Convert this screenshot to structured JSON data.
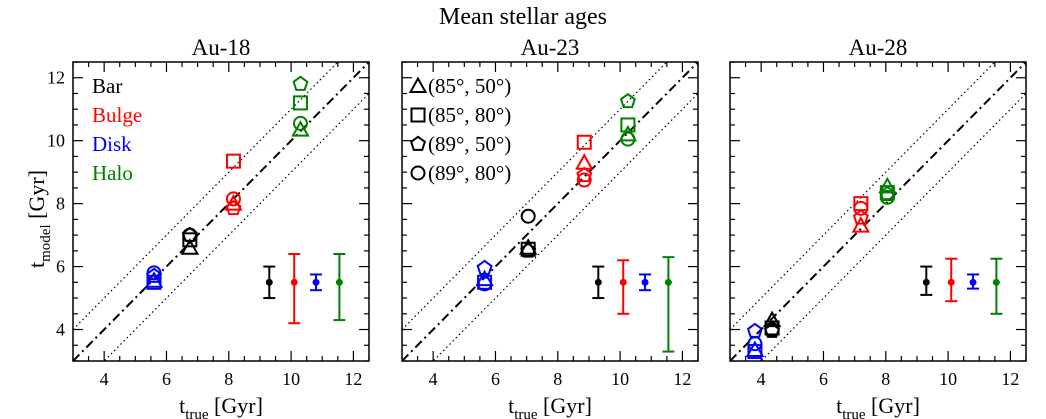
{
  "suptitle": "Mean stellar ages",
  "colors": {
    "Bar": "#000000",
    "Bulge": "#ff0000",
    "Disk": "#0000ff",
    "Halo": "#008000"
  },
  "legend_components": [
    "Bar",
    "Bulge",
    "Disk",
    "Halo"
  ],
  "legend_views": [
    {
      "label": "(85°, 50°)",
      "marker": "triangle"
    },
    {
      "label": "(85°, 80°)",
      "marker": "square"
    },
    {
      "label": "(89°, 50°)",
      "marker": "pentagon"
    },
    {
      "label": "(89°, 80°)",
      "marker": "circle"
    }
  ],
  "chart_data": [
    {
      "type": "scatter",
      "title": "Au-18",
      "xlabel_main": "t",
      "xlabel_sub": "true",
      "xlabel_unit": " [Gyr]",
      "ylabel_main": "t",
      "ylabel_sub": "model",
      "ylabel_unit": " [Gyr]",
      "xlim": [
        3,
        12.5
      ],
      "ylim": [
        3,
        12.5
      ],
      "xticks": [
        4,
        6,
        8,
        10,
        12
      ],
      "yticks": [
        4,
        6,
        8,
        10,
        12
      ],
      "reference_lines": {
        "one_to_one": true,
        "offset_gyr": 1
      },
      "points": {
        "Bar": {
          "x": 6.75,
          "y": {
            "triangle": 6.6,
            "square": 6.85,
            "pentagon": 7.0,
            "circle": 7.0
          }
        },
        "Bulge": {
          "x": 8.15,
          "y": {
            "triangle": 8.0,
            "square": 9.35,
            "pentagon": 7.85,
            "circle": 8.15
          }
        },
        "Disk": {
          "x": 5.6,
          "y": {
            "triangle": 5.55,
            "square": 5.5,
            "pentagon": 5.7,
            "circle": 5.8
          }
        },
        "Halo": {
          "x": 10.3,
          "y": {
            "triangle": 10.35,
            "square": 11.2,
            "pentagon": 11.8,
            "circle": 10.55
          }
        }
      },
      "error_bars": [
        {
          "component": "Bar",
          "x": 9.3,
          "y": 5.5,
          "lo": 5.0,
          "hi": 6.0
        },
        {
          "component": "Bulge",
          "x": 10.1,
          "y": 5.5,
          "lo": 4.2,
          "hi": 6.4
        },
        {
          "component": "Disk",
          "x": 10.8,
          "y": 5.5,
          "lo": 5.25,
          "hi": 5.75
        },
        {
          "component": "Halo",
          "x": 11.55,
          "y": 5.5,
          "lo": 4.3,
          "hi": 6.4
        }
      ]
    },
    {
      "type": "scatter",
      "title": "Au-23",
      "xlabel_main": "t",
      "xlabel_sub": "true",
      "xlabel_unit": " [Gyr]",
      "xlim": [
        3,
        12.5
      ],
      "ylim": [
        3,
        12.5
      ],
      "xticks": [
        4,
        6,
        8,
        10,
        12
      ],
      "yticks": [
        4,
        6,
        8,
        10,
        12
      ],
      "reference_lines": {
        "one_to_one": true,
        "offset_gyr": 1
      },
      "points": {
        "Bar": {
          "x": 7.05,
          "y": {
            "triangle": 6.6,
            "square": 6.55,
            "pentagon": 6.5,
            "circle": 7.6
          }
        },
        "Bulge": {
          "x": 8.85,
          "y": {
            "triangle": 9.3,
            "square": 9.95,
            "pentagon": 8.9,
            "circle": 8.75
          }
        },
        "Disk": {
          "x": 5.65,
          "y": {
            "triangle": 5.6,
            "square": 5.5,
            "pentagon": 5.95,
            "circle": 5.45
          }
        },
        "Halo": {
          "x": 10.25,
          "y": {
            "triangle": 10.2,
            "square": 10.5,
            "pentagon": 11.25,
            "circle": 10.05
          }
        }
      },
      "error_bars": [
        {
          "component": "Bar",
          "x": 9.3,
          "y": 5.5,
          "lo": 5.0,
          "hi": 6.0
        },
        {
          "component": "Bulge",
          "x": 10.1,
          "y": 5.5,
          "lo": 4.5,
          "hi": 6.2
        },
        {
          "component": "Disk",
          "x": 10.8,
          "y": 5.5,
          "lo": 5.25,
          "hi": 5.75
        },
        {
          "component": "Halo",
          "x": 11.55,
          "y": 5.5,
          "lo": 3.3,
          "hi": 6.3
        }
      ]
    },
    {
      "type": "scatter",
      "title": "Au-28",
      "xlabel_main": "t",
      "xlabel_sub": "true",
      "xlabel_unit": " [Gyr]",
      "xlim": [
        3,
        12.5
      ],
      "ylim": [
        3,
        12.5
      ],
      "xticks": [
        4,
        6,
        8,
        10,
        12
      ],
      "yticks": [
        4,
        6,
        8,
        10,
        12
      ],
      "reference_lines": {
        "one_to_one": true,
        "offset_gyr": 1
      },
      "points": {
        "Bar": {
          "x": 4.35,
          "y": {
            "triangle": 4.3,
            "square": 4.05,
            "pentagon": 3.95,
            "circle": 4.0
          }
        },
        "Bulge": {
          "x": 7.2,
          "y": {
            "triangle": 7.3,
            "square": 8.0,
            "pentagon": 7.55,
            "circle": 7.85
          }
        },
        "Disk": {
          "x": 3.8,
          "y": {
            "triangle": 3.35,
            "square": 3.3,
            "pentagon": 3.95,
            "circle": 3.55
          }
        },
        "Halo": {
          "x": 8.05,
          "y": {
            "triangle": 8.55,
            "square": 8.35,
            "pentagon": 8.3,
            "circle": 8.2
          }
        }
      },
      "error_bars": [
        {
          "component": "Bar",
          "x": 9.3,
          "y": 5.5,
          "lo": 5.1,
          "hi": 6.0
        },
        {
          "component": "Bulge",
          "x": 10.1,
          "y": 5.5,
          "lo": 4.9,
          "hi": 6.25
        },
        {
          "component": "Disk",
          "x": 10.8,
          "y": 5.5,
          "lo": 5.3,
          "hi": 5.75
        },
        {
          "component": "Halo",
          "x": 11.55,
          "y": 5.5,
          "lo": 4.5,
          "hi": 6.25
        }
      ]
    }
  ]
}
